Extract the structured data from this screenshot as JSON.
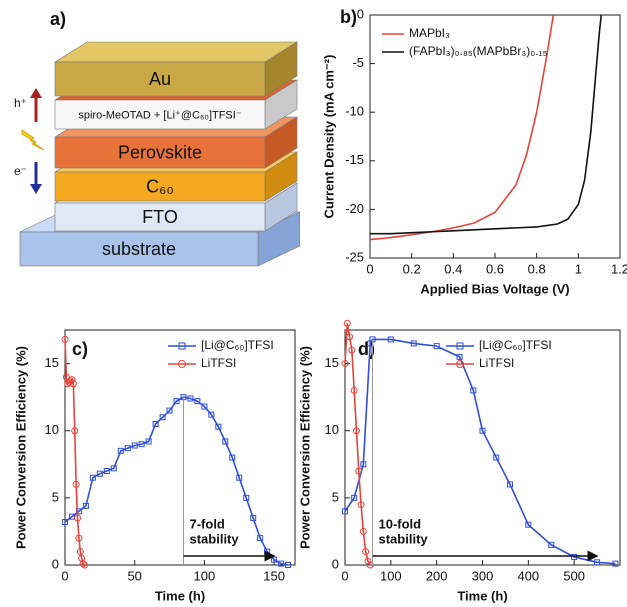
{
  "panel_a": {
    "label": "a)",
    "layers": [
      "Au",
      "spiro-MeOTAD + [Li⁺@C₆₀]TFSI⁻",
      "Perovskite",
      "C₆₀",
      "FTO",
      "substrate"
    ],
    "hole": "h⁺",
    "electron": "e⁻"
  },
  "chart_data": [
    {
      "type": "line",
      "panel": "b)",
      "xlabel": "Applied Bias Voltage (V)",
      "ylabel": "Current Density (mA cm⁻²)",
      "xlim": [
        0,
        1.2
      ],
      "ylim": [
        -25,
        0
      ],
      "xticks": [
        0,
        0.2,
        0.4,
        0.6,
        0.8,
        1,
        1.2
      ],
      "yticks": [
        0,
        -5,
        -10,
        -15,
        -20,
        -25
      ],
      "series": [
        {
          "name": "MAPbI₃",
          "color": "#e8433a",
          "x": [
            0,
            0.1,
            0.2,
            0.3,
            0.4,
            0.5,
            0.6,
            0.7,
            0.75,
            0.8,
            0.85,
            0.88
          ],
          "values": [
            -23.1,
            -22.9,
            -22.6,
            -22.3,
            -21.9,
            -21.4,
            -20.3,
            -17.5,
            -14.5,
            -10,
            -4,
            0
          ]
        },
        {
          "name": "(FAPbI₃)₀.₈₅(MAPbBr₃)₀.₁₅",
          "color": "#111111",
          "x": [
            0,
            0.1,
            0.2,
            0.3,
            0.4,
            0.5,
            0.6,
            0.7,
            0.8,
            0.9,
            0.95,
            1.0,
            1.03,
            1.06,
            1.08,
            1.1,
            1.11
          ],
          "values": [
            -22.5,
            -22.5,
            -22.4,
            -22.3,
            -22.2,
            -22.1,
            -22.0,
            -21.9,
            -21.8,
            -21.5,
            -21,
            -19.5,
            -17,
            -12,
            -7,
            -2,
            0
          ]
        }
      ]
    },
    {
      "type": "line",
      "panel": "c)",
      "xlabel": "Time (h)",
      "ylabel": "Power Conversion Efficiency (%)",
      "xlim": [
        0,
        165
      ],
      "ylim": [
        0,
        17.5
      ],
      "xticks": [
        0,
        50,
        100,
        150
      ],
      "yticks": [
        0,
        5,
        10,
        15
      ],
      "annotation": [
        "7-fold",
        "stability"
      ],
      "series": [
        {
          "name": "[Li@C₆₀]TFSI",
          "color": "#2f4fd8",
          "marker": "square",
          "x": [
            0,
            5,
            10,
            15,
            20,
            25,
            30,
            35,
            40,
            45,
            50,
            55,
            60,
            65,
            70,
            75,
            80,
            85,
            90,
            95,
            100,
            105,
            110,
            115,
            120,
            125,
            130,
            135,
            140,
            145,
            150,
            155,
            160
          ],
          "values": [
            3.2,
            3.6,
            4,
            4.4,
            6.5,
            6.8,
            7,
            7.2,
            8.5,
            8.7,
            8.9,
            9,
            9.2,
            10.5,
            11,
            11.5,
            12.2,
            12.5,
            12.4,
            12.2,
            11.8,
            11.2,
            10.3,
            9.2,
            8,
            6.5,
            5,
            3.5,
            2,
            1,
            0.4,
            0.1,
            0
          ]
        },
        {
          "name": "LiTFSI",
          "color": "#e8433a",
          "marker": "circle",
          "x": [
            0,
            1,
            2,
            3,
            4,
            5,
            6,
            7,
            8,
            9,
            10,
            11,
            12,
            13,
            14
          ],
          "values": [
            16.8,
            14,
            13.5,
            13.6,
            13.7,
            13.8,
            13.5,
            10,
            6,
            3.5,
            2,
            1,
            0.5,
            0.1,
            0
          ]
        }
      ]
    },
    {
      "type": "line",
      "panel": "d)",
      "xlabel": "Time (h)",
      "ylabel": "Power Conversion Efficiency (%)",
      "xlim": [
        0,
        600
      ],
      "ylim": [
        0,
        17.5
      ],
      "xticks": [
        0,
        100,
        200,
        300,
        400,
        500
      ],
      "yticks": [
        0,
        5,
        10,
        15
      ],
      "annotation": [
        "10-fold",
        "stability"
      ],
      "series": [
        {
          "name": "[Li@C₆₀]TFSI",
          "color": "#2f4fd8",
          "marker": "square",
          "x": [
            0,
            20,
            40,
            55,
            60,
            100,
            150,
            200,
            250,
            280,
            300,
            330,
            360,
            400,
            450,
            500,
            550,
            590
          ],
          "values": [
            4,
            5,
            7.5,
            16.5,
            16.8,
            16.8,
            16.5,
            16.3,
            15.5,
            13,
            10,
            8,
            6,
            3,
            1.5,
            0.6,
            0.2,
            0.1
          ]
        },
        {
          "name": "LiTFSI",
          "color": "#e8433a",
          "marker": "circle",
          "x": [
            0,
            5,
            10,
            15,
            20,
            25,
            30,
            35,
            40,
            45,
            50,
            55
          ],
          "values": [
            15,
            18,
            17,
            16,
            13,
            10,
            7,
            4.5,
            2.5,
            1,
            0.3,
            0
          ]
        }
      ]
    }
  ]
}
